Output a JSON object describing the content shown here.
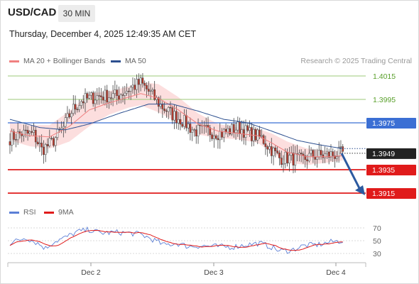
{
  "header": {
    "pair": "USD/CAD",
    "interval": "30 MIN",
    "datetime": "Thursday, December 4, 2025 12:49:35 AM CET",
    "credit": "Research © 2025 Trading Central"
  },
  "legend": {
    "ma20_label": "MA 20 + Bollinger Bands",
    "ma50_label": "MA 50",
    "rsi_label": "RSI",
    "rsi_ma_label": "9MA"
  },
  "colors": {
    "bull": "#ffffff",
    "bear": "#c0392b",
    "candle_outline": "#444444",
    "ma20": "#f08080",
    "ma50": "#2c4f8f",
    "bb_fill": "#fbd3d3",
    "green_level": "#5aa02c",
    "blue_level": "#3b6fd4",
    "red_level": "#e01b1b",
    "current": "#222222",
    "rsi": "#5b7fd6",
    "rsi_ma": "#e01b1b"
  },
  "chart_data": [
    {
      "type": "candlestick",
      "x_ticks": [
        "Dec 2",
        "Dec 3",
        "Dec 4"
      ],
      "price_levels": [
        {
          "value": 1.4015,
          "label": "1.4015",
          "kind": "resistance-green"
        },
        {
          "value": 1.3995,
          "label": "1.3995",
          "kind": "resistance-green"
        },
        {
          "value": 1.3975,
          "label": "1.3975",
          "kind": "pivot-blue"
        },
        {
          "value": 1.3949,
          "label": "1.3949",
          "kind": "current"
        },
        {
          "value": 1.3935,
          "label": "1.3935",
          "kind": "support-red"
        },
        {
          "value": 1.3915,
          "label": "1.3915",
          "kind": "support-red"
        }
      ],
      "ylim": [
        1.3907,
        1.4025
      ],
      "anchors": [
        [
          0,
          1.3962
        ],
        [
          6,
          1.3966
        ],
        [
          12,
          1.3965
        ],
        [
          16,
          1.3952
        ],
        [
          21,
          1.3958
        ],
        [
          27,
          1.3971
        ],
        [
          31,
          1.3985
        ],
        [
          36,
          1.3994
        ],
        [
          45,
          1.3998
        ],
        [
          54,
          1.3998
        ],
        [
          61,
          1.4005
        ],
        [
          66,
          1.4009
        ],
        [
          71,
          1.4
        ],
        [
          76,
          1.399
        ],
        [
          82,
          1.3982
        ],
        [
          87,
          1.3977
        ],
        [
          93,
          1.3968
        ],
        [
          99,
          1.3968
        ],
        [
          107,
          1.3966
        ],
        [
          115,
          1.3971
        ],
        [
          121,
          1.3966
        ],
        [
          127,
          1.3962
        ],
        [
          131,
          1.3954
        ],
        [
          136,
          1.3945
        ],
        [
          141,
          1.3945
        ],
        [
          147,
          1.3943
        ],
        [
          152,
          1.3947
        ],
        [
          158,
          1.3947
        ],
        [
          164,
          1.3948
        ],
        [
          168,
          1.3949
        ]
      ],
      "ma20_points": [
        [
          0,
          1.3968
        ],
        [
          10,
          1.3964
        ],
        [
          20,
          1.3963
        ],
        [
          30,
          1.3972
        ],
        [
          40,
          1.3986
        ],
        [
          50,
          1.3992
        ],
        [
          60,
          1.3997
        ],
        [
          66,
          1.4
        ],
        [
          75,
          1.3996
        ],
        [
          85,
          1.3986
        ],
        [
          95,
          1.3974
        ],
        [
          105,
          1.3968
        ],
        [
          115,
          1.3966
        ],
        [
          125,
          1.3964
        ],
        [
          132,
          1.3958
        ],
        [
          140,
          1.395
        ],
        [
          150,
          1.3946
        ],
        [
          160,
          1.3946
        ],
        [
          168,
          1.3947
        ]
      ],
      "ma50_points": [
        [
          0,
          1.3978
        ],
        [
          15,
          1.3971
        ],
        [
          28,
          1.3969
        ],
        [
          40,
          1.3974
        ],
        [
          55,
          1.3983
        ],
        [
          70,
          1.3991
        ],
        [
          82,
          1.3991
        ],
        [
          95,
          1.3985
        ],
        [
          108,
          1.3978
        ],
        [
          120,
          1.3975
        ],
        [
          132,
          1.3968
        ],
        [
          145,
          1.396
        ],
        [
          157,
          1.3956
        ],
        [
          168,
          1.3953
        ]
      ],
      "bb_width_points": [
        [
          0,
          8
        ],
        [
          10,
          9
        ],
        [
          20,
          10
        ],
        [
          30,
          13
        ],
        [
          40,
          14
        ],
        [
          50,
          10
        ],
        [
          60,
          9
        ],
        [
          66,
          10
        ],
        [
          75,
          12
        ],
        [
          85,
          11
        ],
        [
          95,
          9
        ],
        [
          105,
          6
        ],
        [
          115,
          5
        ],
        [
          125,
          6
        ],
        [
          132,
          8
        ],
        [
          140,
          9
        ],
        [
          150,
          7
        ],
        [
          160,
          5
        ],
        [
          168,
          4
        ]
      ],
      "forecast_target": 1.3915
    },
    {
      "type": "line",
      "name": "rsi-panel",
      "y_ticks": [
        70,
        50,
        30
      ],
      "ylim": [
        25,
        75
      ],
      "rsi_anchors": [
        [
          0,
          46
        ],
        [
          8,
          55
        ],
        [
          14,
          46
        ],
        [
          18,
          38
        ],
        [
          22,
          48
        ],
        [
          28,
          55
        ],
        [
          34,
          64
        ],
        [
          40,
          67
        ],
        [
          46,
          62
        ],
        [
          54,
          63
        ],
        [
          60,
          62
        ],
        [
          66,
          60
        ],
        [
          72,
          52
        ],
        [
          78,
          43
        ],
        [
          84,
          46
        ],
        [
          90,
          41
        ],
        [
          96,
          42
        ],
        [
          104,
          41
        ],
        [
          112,
          40
        ],
        [
          120,
          44
        ],
        [
          126,
          46
        ],
        [
          132,
          40
        ],
        [
          136,
          34
        ],
        [
          142,
          35
        ],
        [
          148,
          42
        ],
        [
          156,
          44
        ],
        [
          162,
          48
        ],
        [
          168,
          50
        ]
      ]
    }
  ]
}
